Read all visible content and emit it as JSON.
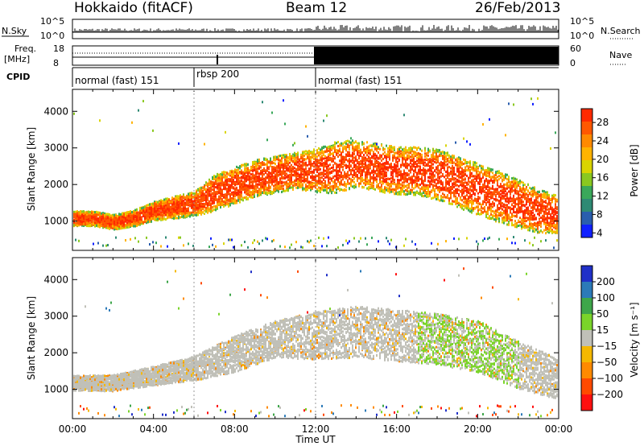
{
  "header": {
    "station": "Hokkaido (fitACF)",
    "beam": "Beam 12",
    "date": "26/Feb/2013"
  },
  "nsky": {
    "label": "N.Sky",
    "tick_top": "10^5",
    "tick_bottom": "10^0",
    "right_label": "N.Search",
    "right_tick_top": "10^5",
    "right_tick_bottom": "10^0"
  },
  "freq": {
    "label_line1": "Freq.",
    "label_line2": "[MHz]",
    "tick_top": "18",
    "tick_bottom": "8",
    "right_label": "Nave",
    "right_tick_top": "60",
    "right_tick_bottom": "0"
  },
  "cpid": {
    "label": "CPID",
    "segments": [
      {
        "name": "normal (fast) 151",
        "start_hour": 0,
        "end_hour": 6
      },
      {
        "name": "rbsp 200",
        "start_hour": 6,
        "end_hour": 12
      },
      {
        "name": "normal (fast) 151",
        "start_hour": 12,
        "end_hour": 24
      }
    ]
  },
  "power_panel": {
    "ylabel": "Slant Range [km]",
    "colorbar_label": "Power [dB]",
    "colorbar_ticks": [
      "28",
      "24",
      "20",
      "16",
      "12",
      "8",
      "4"
    ],
    "colorbar_colors": [
      "#ff2a00",
      "#ff5800",
      "#ff8a00",
      "#ffb300",
      "#d9d400",
      "#8ac820",
      "#3aa85a",
      "#2e8a74",
      "#2a5eae",
      "#1020ff"
    ]
  },
  "velocity_panel": {
    "ylabel": "Slant Range [km]",
    "colorbar_label": "Velocity [m s⁻¹]",
    "colorbar_ticks": [
      "200",
      "100",
      "50",
      "15",
      "−15",
      "−50",
      "−100",
      "−200"
    ],
    "colorbar_colors": [
      "#2030c8",
      "#2c7ab8",
      "#3ea64a",
      "#7ad42a",
      "#c0c0b8",
      "#f5b800",
      "#ff8a00",
      "#ff4a00",
      "#ff1010"
    ]
  },
  "xaxis": {
    "label": "Time UT",
    "ticks": [
      "00:00",
      "04:00",
      "08:00",
      "12:00",
      "16:00",
      "20:00",
      "00:00"
    ]
  },
  "chart_data": {
    "type": "heatmap",
    "title": "Hokkaido (fitACF) Beam 12 26/Feb/2013",
    "xlabel": "Time UT",
    "ylabel": "Slant Range [km]",
    "xlim": [
      0,
      24
    ],
    "ylim": [
      200,
      4600
    ],
    "yticks": [
      1000,
      2000,
      3000,
      4000
    ],
    "panels": [
      {
        "name": "Power",
        "unit": "dB",
        "colorbar_range": [
          0,
          30
        ],
        "scatter_band": [
          [
            0,
            1100,
            200
          ],
          [
            1,
            1100,
            200
          ],
          [
            2,
            1000,
            200
          ],
          [
            3,
            1100,
            220
          ],
          [
            4,
            1300,
            260
          ],
          [
            5,
            1400,
            300
          ],
          [
            6,
            1500,
            330
          ],
          [
            7,
            1800,
            500
          ],
          [
            8,
            2000,
            500
          ],
          [
            9,
            2200,
            500
          ],
          [
            10,
            2300,
            500
          ],
          [
            11,
            2400,
            500
          ],
          [
            12,
            2400,
            600
          ],
          [
            13,
            2500,
            700
          ],
          [
            14,
            2600,
            650
          ],
          [
            15,
            2500,
            650
          ],
          [
            16,
            2400,
            650
          ],
          [
            17,
            2400,
            650
          ],
          [
            18,
            2300,
            700
          ],
          [
            19,
            2100,
            700
          ],
          [
            20,
            1900,
            700
          ],
          [
            21,
            1700,
            700
          ],
          [
            22,
            1500,
            650
          ],
          [
            23,
            1300,
            600
          ],
          [
            24,
            1200,
            500
          ]
        ]
      },
      {
        "name": "Velocity",
        "unit": "m s-1",
        "colorbar_range": [
          -200,
          200
        ],
        "scatter_band": [
          [
            0,
            1200,
            200
          ],
          [
            2,
            1200,
            220
          ],
          [
            4,
            1400,
            260
          ],
          [
            6,
            1600,
            330
          ],
          [
            8,
            2000,
            500
          ],
          [
            10,
            2400,
            500
          ],
          [
            12,
            2500,
            650
          ],
          [
            14,
            2600,
            700
          ],
          [
            16,
            2500,
            700
          ],
          [
            18,
            2400,
            700
          ],
          [
            20,
            2200,
            700
          ],
          [
            22,
            1700,
            650
          ],
          [
            24,
            1300,
            550
          ]
        ]
      }
    ]
  }
}
